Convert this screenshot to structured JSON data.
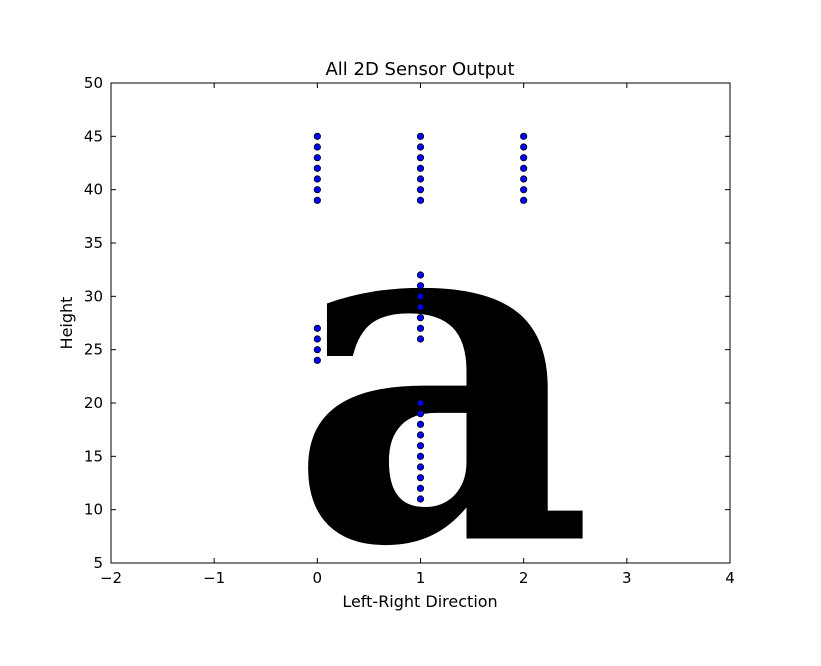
{
  "chart_data": {
    "type": "scatter",
    "title": "All 2D Sensor Output",
    "xlabel": "Left-Right Direction",
    "ylabel": "Height",
    "xlim": [
      -2,
      4
    ],
    "ylim": [
      5,
      50
    ],
    "x_ticks": [
      -2,
      -1,
      0,
      1,
      2,
      3,
      4
    ],
    "x_tick_labels": [
      "−2",
      "−1",
      "0",
      "1",
      "2",
      "3",
      "4"
    ],
    "y_ticks": [
      5,
      10,
      15,
      20,
      25,
      30,
      35,
      40,
      45,
      50
    ],
    "y_tick_labels": [
      "5",
      "10",
      "15",
      "20",
      "25",
      "30",
      "35",
      "40",
      "45",
      "50"
    ],
    "grid": false,
    "marker_color": "#0000ff",
    "glyph": {
      "text": "a",
      "color": "#0000e0",
      "description": "large filled letter drawn behind the sensor points"
    },
    "series": [
      {
        "points": [
          [
            0,
            39
          ],
          [
            0,
            40
          ],
          [
            0,
            41
          ],
          [
            0,
            42
          ],
          [
            0,
            43
          ],
          [
            0,
            44
          ],
          [
            0,
            45
          ],
          [
            1,
            39
          ],
          [
            1,
            40
          ],
          [
            1,
            41
          ],
          [
            1,
            42
          ],
          [
            1,
            43
          ],
          [
            1,
            44
          ],
          [
            1,
            45
          ],
          [
            2,
            39
          ],
          [
            2,
            40
          ],
          [
            2,
            41
          ],
          [
            2,
            42
          ],
          [
            2,
            43
          ],
          [
            2,
            44
          ],
          [
            2,
            45
          ],
          [
            1,
            26
          ],
          [
            1,
            27
          ],
          [
            1,
            28
          ],
          [
            1,
            29
          ],
          [
            1,
            30
          ],
          [
            1,
            31
          ],
          [
            1,
            32
          ],
          [
            0,
            24
          ],
          [
            0,
            25
          ],
          [
            0,
            26
          ],
          [
            0,
            27
          ],
          [
            1,
            11
          ],
          [
            1,
            12
          ],
          [
            1,
            13
          ],
          [
            1,
            14
          ],
          [
            1,
            15
          ],
          [
            1,
            16
          ],
          [
            1,
            17
          ],
          [
            1,
            18
          ],
          [
            1,
            19
          ],
          [
            1,
            20
          ]
        ]
      }
    ]
  }
}
